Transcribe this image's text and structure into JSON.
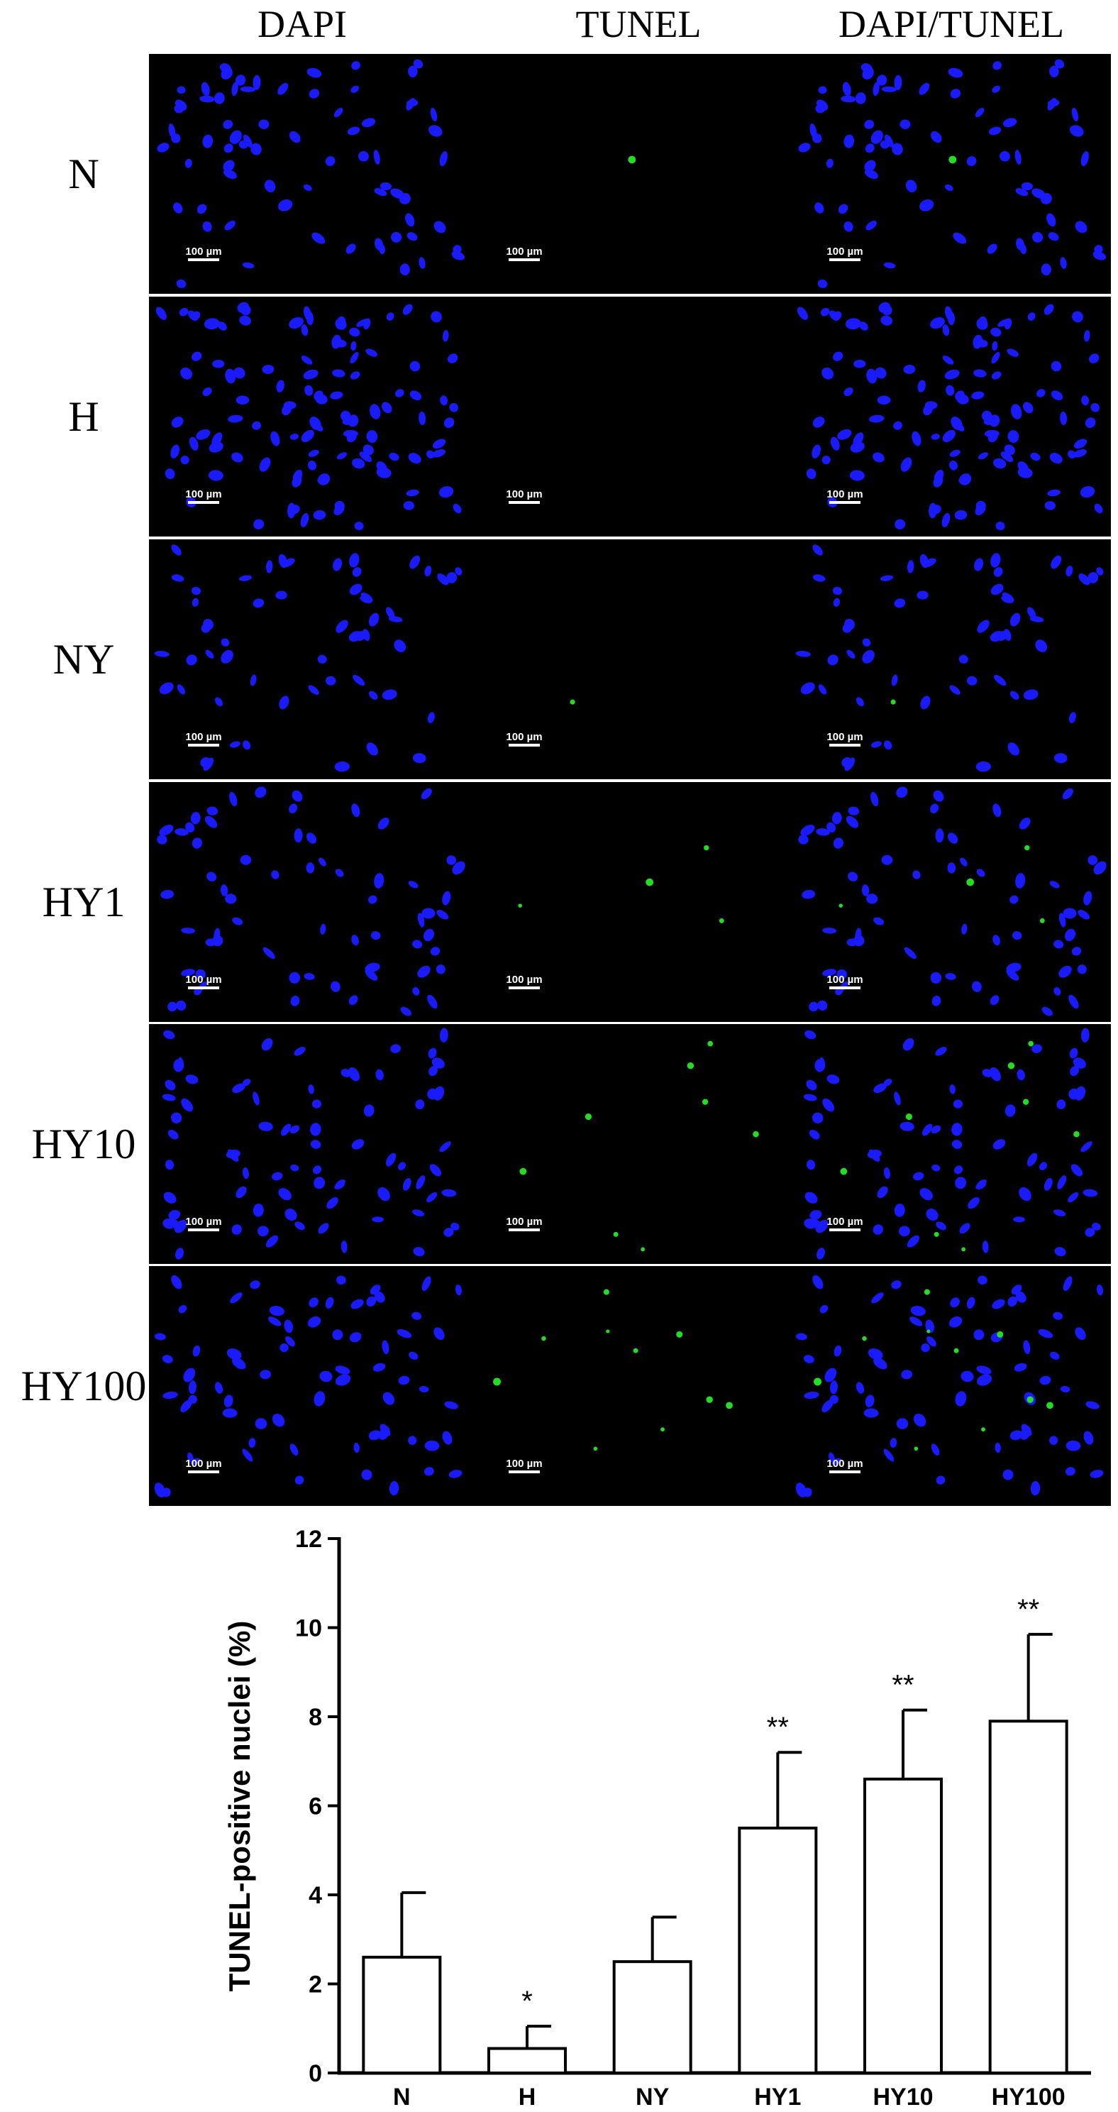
{
  "micrographs": {
    "columns": [
      "DAPI",
      "TUNEL",
      "DAPI/TUNEL"
    ],
    "rows": [
      "N",
      "H",
      "NY",
      "HY1",
      "HY10",
      "HY100"
    ],
    "scale_bar_label": "100 µm",
    "colors": {
      "background": "#000000",
      "nucleus": "#1a1aff",
      "tunel": "#22dd22",
      "divider": "#ffffff"
    }
  },
  "chart_data": {
    "type": "bar",
    "categories": [
      "N",
      "H",
      "NY",
      "HY1",
      "HY10",
      "HY100"
    ],
    "values": [
      2.6,
      0.55,
      2.5,
      5.5,
      6.6,
      7.9
    ],
    "errors": [
      1.45,
      0.5,
      1.0,
      1.7,
      1.55,
      1.95
    ],
    "significance": [
      "",
      "*",
      "",
      "**",
      "**",
      "**"
    ],
    "xlabel": "",
    "ylabel": "TUNEL-positive nuclei (%)",
    "ylim": [
      0,
      12
    ],
    "yticks": [
      0,
      2,
      4,
      6,
      8,
      10,
      12
    ],
    "grid": false,
    "bar_fill": "#ffffff",
    "bar_stroke": "#000000"
  }
}
